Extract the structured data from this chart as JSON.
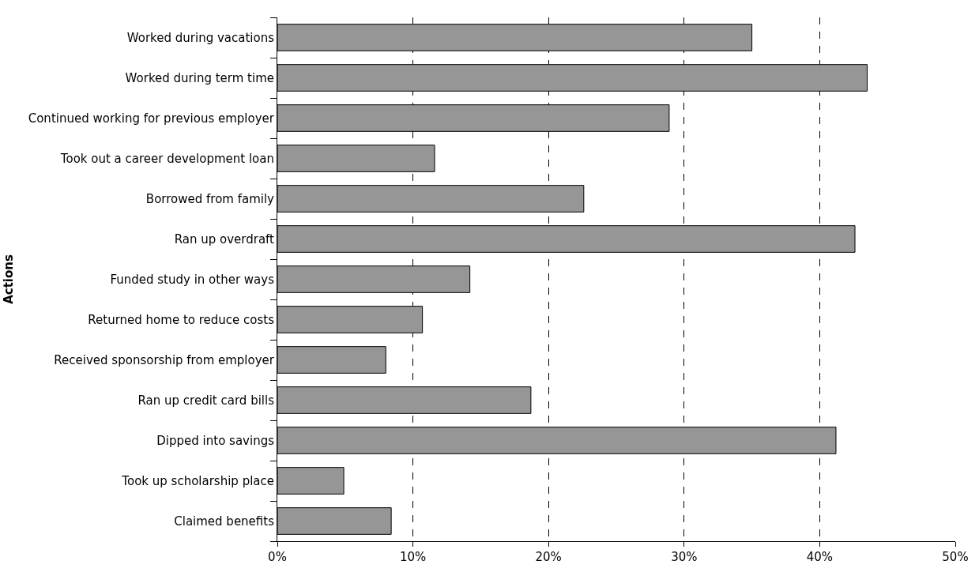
{
  "chart_data": {
    "type": "bar",
    "orientation": "horizontal",
    "ylabel": "Actions",
    "categories": [
      "Worked during vacations",
      "Worked during term time",
      "Continued working for previous employer",
      "Took out a career development loan",
      "Borrowed from family",
      "Ran up overdraft",
      "Funded study in other ways",
      "Returned home to reduce costs",
      "Received sponsorship from employer",
      "Ran up credit card bills",
      "Dipped into savings",
      "Took up scholarship place",
      "Claimed benefits"
    ],
    "values": [
      35.0,
      43.5,
      28.9,
      11.6,
      22.6,
      42.6,
      14.2,
      10.7,
      8.0,
      18.7,
      41.2,
      4.9,
      8.4
    ],
    "color": "#969696",
    "xlim": [
      0,
      50
    ],
    "xticks": [
      {
        "value": 0,
        "label": "0%"
      },
      {
        "value": 10,
        "label": "10%"
      },
      {
        "value": 20,
        "label": "20%"
      },
      {
        "value": 30,
        "label": "30%"
      },
      {
        "value": 40,
        "label": "40%"
      },
      {
        "value": 50,
        "label": "50%"
      }
    ],
    "grid": "x",
    "line_style": "dashed"
  }
}
